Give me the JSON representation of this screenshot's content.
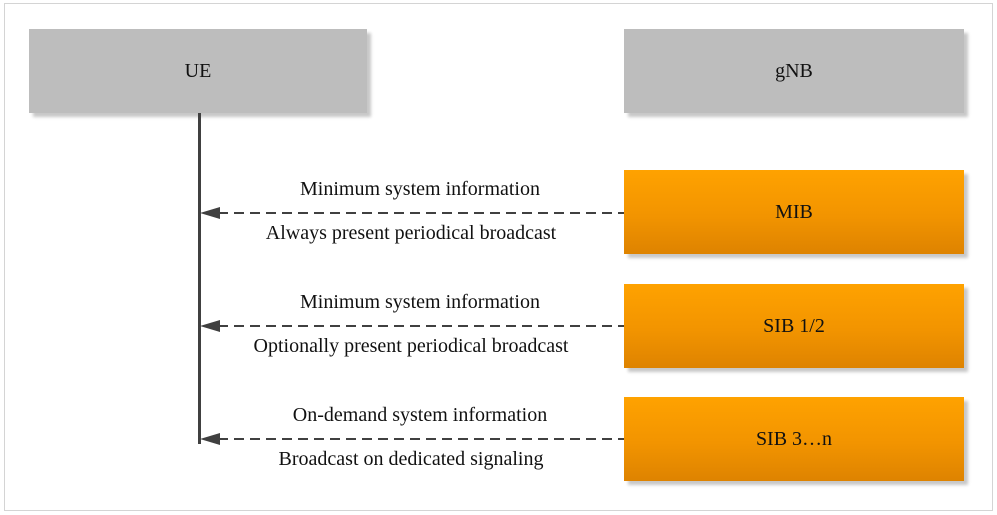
{
  "participants": {
    "ue": "UE",
    "gnb": "gNB"
  },
  "messages": [
    {
      "block": "MIB",
      "label_top": "Minimum system information",
      "label_bottom": "Always present periodical broadcast"
    },
    {
      "block": "SIB 1/2",
      "label_top": "Minimum system information",
      "label_bottom": "Optionally present periodical broadcast"
    },
    {
      "block": "SIB 3…n",
      "label_top": "On-demand system information",
      "label_bottom": "Broadcast on dedicated signaling"
    }
  ],
  "colors": {
    "participant_fill": "#bdbdbd",
    "block_fill": "#f39a00",
    "line": "#404040"
  }
}
